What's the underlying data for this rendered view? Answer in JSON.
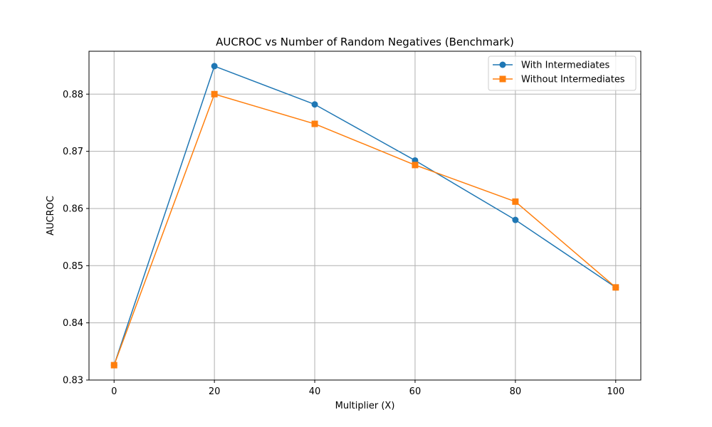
{
  "chart_data": {
    "type": "line",
    "title": "AUCROC vs Number of Random Negatives (Benchmark)",
    "xlabel": "Multiplier (X)",
    "ylabel": "AUCROC",
    "xlim": [
      -5,
      105
    ],
    "ylim": [
      0.83,
      0.8875
    ],
    "x_ticks": [
      0,
      20,
      40,
      60,
      80,
      100
    ],
    "x_tick_labels": [
      "0",
      "20",
      "40",
      "60",
      "80",
      "100"
    ],
    "y_ticks": [
      0.83,
      0.84,
      0.85,
      0.86,
      0.87,
      0.88
    ],
    "y_tick_labels": [
      "0.83",
      "0.84",
      "0.85",
      "0.86",
      "0.87",
      "0.88"
    ],
    "grid": true,
    "legend_position": "top-right",
    "x": [
      0,
      20,
      40,
      60,
      80,
      100
    ],
    "series": [
      {
        "name": "With Intermediates",
        "color": "#1f77b4",
        "marker": "circle",
        "values": [
          0.8326,
          0.8849,
          0.8782,
          0.8684,
          0.858,
          0.8462
        ]
      },
      {
        "name": "Without Intermediates",
        "color": "#ff7f0e",
        "marker": "square",
        "values": [
          0.8326,
          0.88,
          0.8748,
          0.8676,
          0.8612,
          0.8462
        ]
      }
    ]
  }
}
